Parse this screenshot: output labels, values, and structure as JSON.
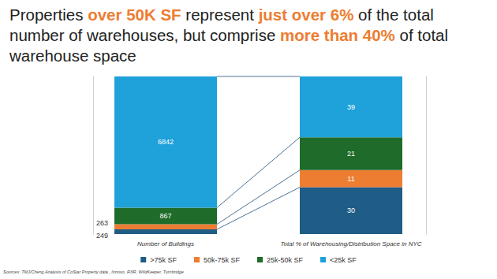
{
  "title": "Properties over 50K SF represent just over 6% of the total number of warehouses, but comprise more than 40% of total warehouse space",
  "title_highlights": [
    "over 50K SF",
    "just over 6%",
    "more than 40%"
  ],
  "source": "Sources: TMJ/Cheng Analysis of CoStar Property data , Innovo, RXR, WildKeeper, Turnbridge",
  "chart_data": [
    {
      "type": "bar",
      "stacked": true,
      "data_labels": true,
      "tick_labels": false,
      "legend": "bottom",
      "categories": [
        "Number of Buildings"
      ],
      "ylim": [
        0,
        8221
      ],
      "series": [
        {
          "name": ">75k SF",
          "color": "#1f5c86",
          "values": [
            249
          ]
        },
        {
          "name": "50k-75k SF",
          "color": "#ed7d31",
          "values": [
            263
          ]
        },
        {
          "name": "25k-50k SF",
          "color": "#1e6b2a",
          "values": [
            867
          ]
        },
        {
          "name": "<25k SF",
          "color": "#1fa1d9",
          "values": [
            6842
          ]
        }
      ]
    },
    {
      "type": "bar",
      "stacked": true,
      "data_labels": true,
      "tick_labels": false,
      "categories": [
        "Total % of Warehousing/Distribution Space in NYC"
      ],
      "ylim": [
        0,
        101
      ],
      "series": [
        {
          "name": ">75k SF",
          "color": "#1f5c86",
          "values": [
            30
          ]
        },
        {
          "name": "50k-75k SF",
          "color": "#ed7d31",
          "values": [
            11
          ]
        },
        {
          "name": "25k-50k SF",
          "color": "#1e6b2a",
          "values": [
            21
          ]
        },
        {
          "name": "<25k SF",
          "color": "#1fa1d9",
          "values": [
            39
          ]
        }
      ]
    }
  ]
}
